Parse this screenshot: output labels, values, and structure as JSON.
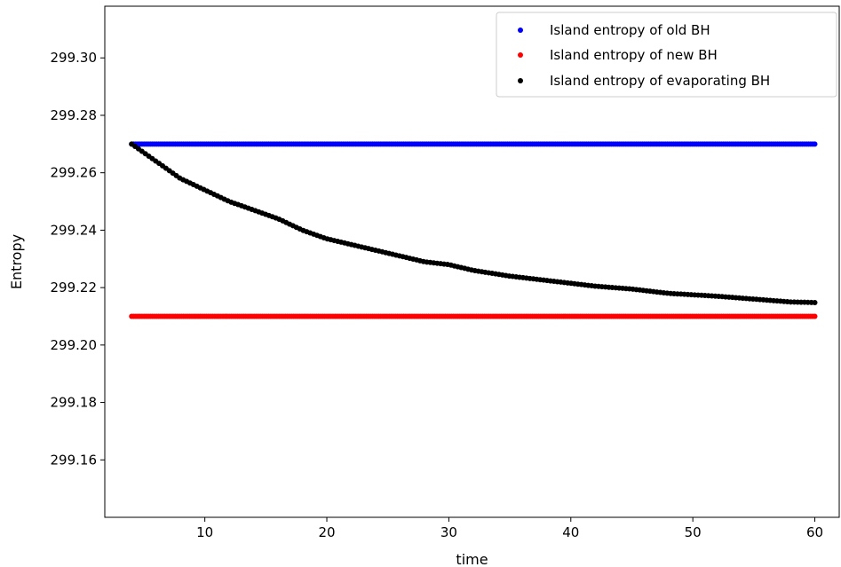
{
  "chart_data": {
    "type": "scatter",
    "title": "",
    "xlabel": "time",
    "ylabel": "Entropy",
    "xlim": [
      1.8,
      62.0
    ],
    "ylim": [
      299.14,
      299.318
    ],
    "x_ticks": [
      10,
      20,
      30,
      40,
      50,
      60
    ],
    "y_ticks": [
      299.16,
      299.18,
      299.2,
      299.22,
      299.24,
      299.26,
      299.28,
      299.3
    ],
    "y_tick_labels": [
      "299.16",
      "299.18",
      "299.20",
      "299.22",
      "299.24",
      "299.26",
      "299.28",
      "299.30"
    ],
    "grid": false,
    "legend": "top-right",
    "x_range": [
      4,
      60
    ],
    "series": [
      {
        "name": "Island entropy of old BH",
        "color": "#0000ff",
        "kind": "constant",
        "y": 299.27
      },
      {
        "name": "Island entropy of new BH",
        "color": "#ff0000",
        "kind": "constant",
        "y": 299.21
      },
      {
        "name": "Island entropy of evaporating BH",
        "color": "#000000",
        "kind": "curve",
        "x": [
          4,
          5,
          6,
          7,
          8,
          9,
          10,
          12,
          14,
          16,
          18,
          20,
          22,
          25,
          28,
          30,
          32,
          35,
          38,
          40,
          42,
          45,
          48,
          50,
          52,
          55,
          58,
          60
        ],
        "y": [
          299.27,
          299.267,
          299.264,
          299.261,
          299.258,
          299.256,
          299.254,
          299.25,
          299.247,
          299.244,
          299.24,
          299.237,
          299.235,
          299.232,
          299.229,
          299.228,
          299.226,
          299.224,
          299.2225,
          299.2215,
          299.2205,
          299.2195,
          299.218,
          299.2175,
          299.217,
          299.216,
          299.215,
          299.2148
        ]
      }
    ]
  }
}
